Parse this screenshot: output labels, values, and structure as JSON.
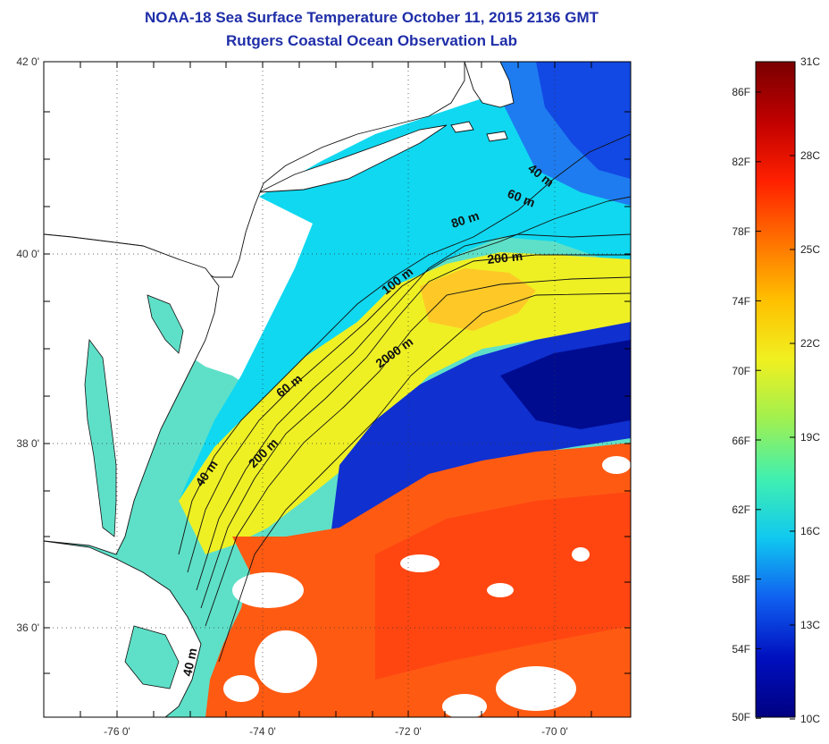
{
  "title_line1": "NOAA-18 Sea Surface Temperature October 11, 2015 2136 GMT",
  "title_line2": "Rutgers Coastal Ocean Observation Lab",
  "latitude_labels": [
    "42 0'",
    "40 0'",
    "38 0'",
    "36 0'"
  ],
  "longitude_labels": [
    "-76 0'",
    "-74 0'",
    "-72 0'",
    "-70 0'"
  ],
  "contour_labels": [
    "40 m",
    "60 m",
    "80 m",
    "200 m",
    "100 m",
    "2000 m",
    "60 m",
    "200 m",
    "40 m",
    "40 m"
  ],
  "colorbar": {
    "fahrenheit_labels": [
      "86F",
      "82F",
      "78F",
      "74F",
      "70F",
      "66F",
      "62F",
      "58F",
      "54F",
      "50F"
    ],
    "celsius_labels": [
      "31C",
      "28C",
      "25C",
      "22C",
      "19C",
      "16C",
      "13C",
      "10C"
    ],
    "colors": [
      "#7a0000",
      "#c00000",
      "#ff2000",
      "#ff7000",
      "#ffc000",
      "#f0f020",
      "#a0f050",
      "#40f0b0",
      "#10c8f0",
      "#1060f0",
      "#0010c0",
      "#000080"
    ]
  },
  "colors": {
    "title": "#1f2ea8",
    "land": "#ffffff",
    "coastal_water": "#5ee0c8",
    "shelf_water": "#10d8f0",
    "slope_water": "#f5f020",
    "warm_core": "#ffb020",
    "cold_water": "#0020c0",
    "gulf_stream": "#ff5010"
  }
}
